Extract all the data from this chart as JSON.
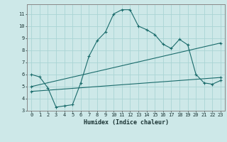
{
  "xlabel": "Humidex (Indice chaleur)",
  "bg_color": "#cde8e8",
  "grid_color": "#aad4d4",
  "line_color": "#1a6b6b",
  "xlim": [
    -0.5,
    23.5
  ],
  "ylim": [
    3,
    11.8
  ],
  "yticks": [
    3,
    4,
    5,
    6,
    7,
    8,
    9,
    10,
    11
  ],
  "xticks": [
    0,
    1,
    2,
    3,
    4,
    5,
    6,
    7,
    8,
    9,
    10,
    11,
    12,
    13,
    14,
    15,
    16,
    17,
    18,
    19,
    20,
    21,
    22,
    23
  ],
  "line1_x": [
    0,
    1,
    2,
    3,
    4,
    5,
    6,
    7,
    8,
    9,
    10,
    11,
    12,
    13,
    14,
    15,
    16,
    17,
    18,
    19,
    20,
    21,
    22,
    23
  ],
  "line1_y": [
    6.0,
    5.8,
    4.9,
    3.3,
    3.4,
    3.5,
    5.3,
    7.5,
    8.8,
    9.5,
    11.0,
    11.35,
    11.35,
    10.0,
    9.7,
    9.3,
    8.5,
    8.15,
    8.9,
    8.45,
    6.0,
    5.3,
    5.2,
    5.5
  ],
  "line2_x": [
    0,
    23
  ],
  "line2_y": [
    5.0,
    8.6
  ],
  "line3_x": [
    0,
    23
  ],
  "line3_y": [
    4.6,
    5.75
  ]
}
